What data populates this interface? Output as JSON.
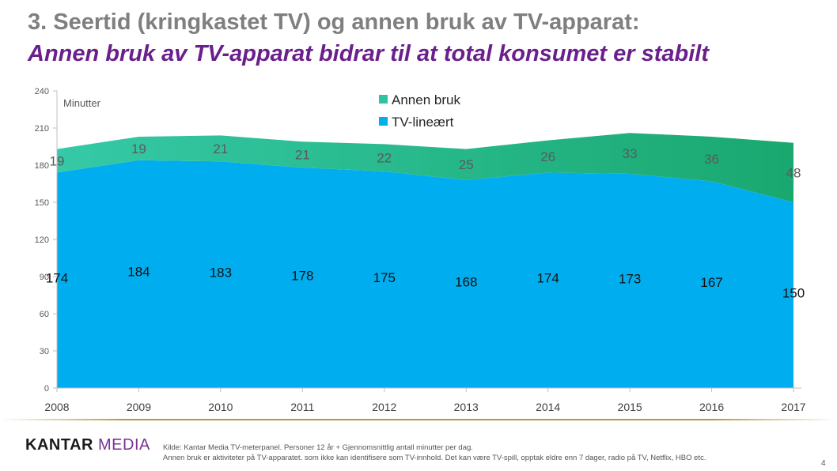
{
  "header": {
    "title": "3. Seertid (kringkastet TV) og annen bruk av TV-apparat:",
    "subtitle": "Annen bruk av TV-apparat bidrar til at total konsumet er stabilt"
  },
  "chart_data": {
    "type": "area",
    "stacked": true,
    "x": [
      "2008",
      "2009",
      "2010",
      "2011",
      "2012",
      "2013",
      "2014",
      "2015",
      "2016",
      "2017"
    ],
    "series": [
      {
        "name": "TV-lineært",
        "values": [
          174,
          184,
          183,
          178,
          175,
          168,
          174,
          173,
          167,
          150
        ],
        "color": "#00aeef"
      },
      {
        "name": "Annen bruk",
        "values": [
          19,
          19,
          21,
          21,
          22,
          25,
          26,
          33,
          36,
          48
        ],
        "color": "#2ec4a0"
      }
    ],
    "ylabel": "Minutter",
    "ylim": [
      0,
      240
    ],
    "yticks": [
      "0",
      "30",
      "60",
      "90",
      "120",
      "150",
      "180",
      "210",
      "240"
    ],
    "legend": "top-center",
    "grid": false
  },
  "colors": {
    "title_gray": "#7f7f7f",
    "subtitle_purple": "#6b1f8c",
    "tv_area": "#00aeef",
    "other_area": "#2ec4a0",
    "other_area_dark": "#1eb48a"
  },
  "footer": {
    "logo_kantar": "KANTAR",
    "logo_media": "MEDIA",
    "source_line": "Kilde: Kantar Media TV-meterpanel. Personer 12 år + Gjennomsnittlig antall minutter per dag.",
    "note_line": "Annen bruk er aktiviteter på TV-apparatet. som ikke kan identifisere som TV-innhold. Det kan være TV-spill, opptak eldre enn 7 dager, radio på TV, Netflix, HBO etc.",
    "page_number": "4"
  }
}
